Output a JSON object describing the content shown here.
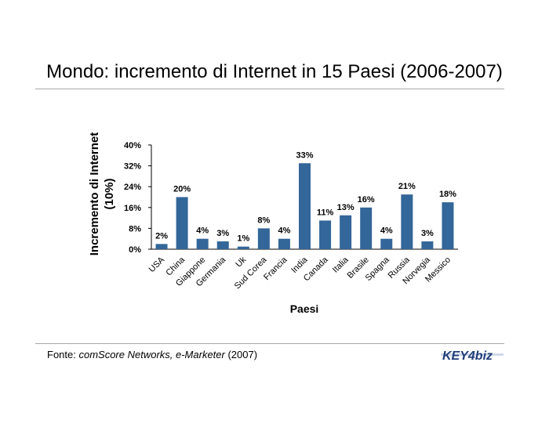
{
  "title": "Mondo: incremento di Internet in 15 Paesi (2006-2007)",
  "source": {
    "prefix": "Fonte: ",
    "names": "comScore Networks, e-Marketer",
    "suffix": " (2007)"
  },
  "logo": {
    "text": "KEY4biz",
    "color": "#1f3d7a"
  },
  "chart_data": {
    "type": "bar",
    "categories": [
      "USA",
      "China",
      "Giappone",
      "Germania",
      "Uk",
      "Sud Corea",
      "Francia",
      "India",
      "Canada",
      "Italia",
      "Brasile",
      "Spagna",
      "Russia",
      "Norvegia",
      "Messico"
    ],
    "values": [
      2,
      20,
      4,
      3,
      1,
      8,
      4,
      33,
      11,
      13,
      16,
      4,
      21,
      3,
      18
    ],
    "data_labels": [
      "2%",
      "20%",
      "4%",
      "3%",
      "1%",
      "8%",
      "4%",
      "33%",
      "11%",
      "13%",
      "16%",
      "4%",
      "21%",
      "3%",
      "18%"
    ],
    "ylim": [
      0,
      40
    ],
    "yticks": [
      0,
      8,
      16,
      24,
      32,
      40
    ],
    "ytick_labels": [
      "0%",
      "8%",
      "16%",
      "24%",
      "32%",
      "40%"
    ],
    "ylabel": [
      "Incremento di Internet",
      "(10%)"
    ],
    "xlabel": "Paesi",
    "bar_color": "#336699",
    "grid": false,
    "legend": "none"
  }
}
